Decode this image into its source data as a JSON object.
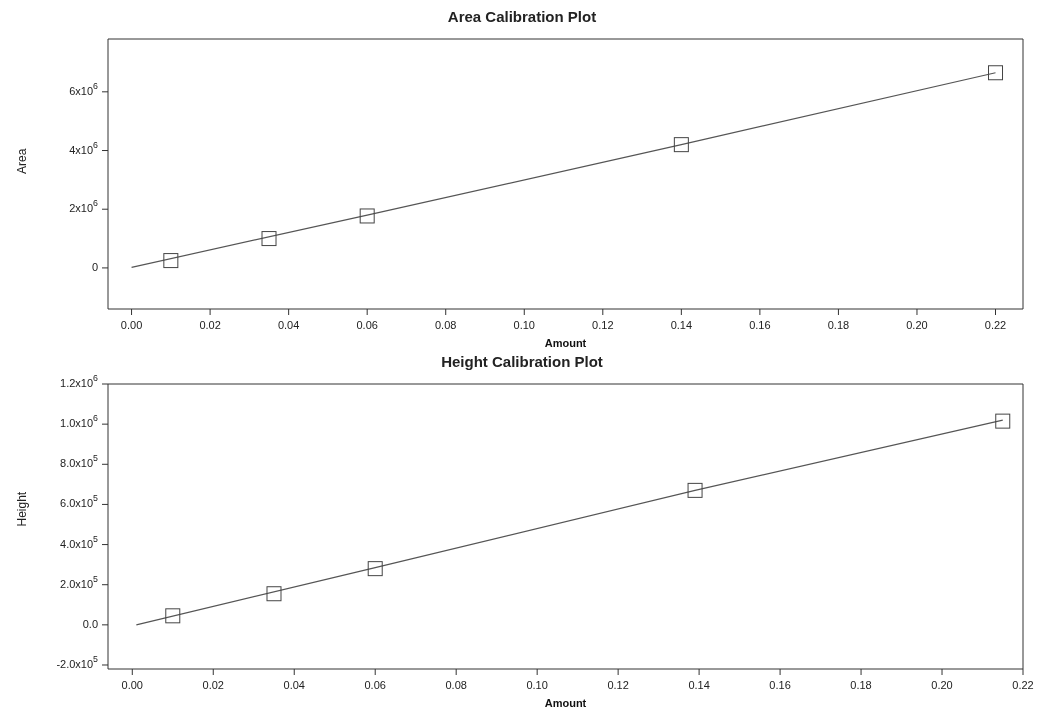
{
  "chart_data": [
    {
      "type": "scatter",
      "title": "Area Calibration Plot",
      "xlabel": "Amount",
      "ylabel": "Area",
      "xlim": [
        -0.006,
        0.227
      ],
      "xticks": [
        {
          "value": 0,
          "label": "0.00"
        },
        0.02,
        0.04,
        0.06,
        0.08,
        {
          "value": 0.1,
          "label": "0.10"
        },
        0.12,
        0.14,
        0.16,
        0.18,
        {
          "value": 0.2,
          "label": "0.20"
        },
        0.22
      ],
      "ylim": [
        -1400000,
        7800000
      ],
      "yticks": [
        {
          "value": 0,
          "label": "0"
        },
        {
          "value": 2000000,
          "label": "2x10$^{6}$"
        },
        {
          "value": 4000000,
          "label": "4x10$^{6}$"
        },
        {
          "value": 6000000,
          "label": "6x10$^{6}$"
        }
      ],
      "grid": false,
      "legend": false,
      "series": [
        {
          "type": "scatter",
          "marker": "square",
          "color": "#444444",
          "x": [
            0.01,
            0.035,
            0.06,
            0.14,
            0.22
          ],
          "values": [
            250000,
            1000000,
            1770000,
            4200000,
            6650000
          ]
        },
        {
          "type": "line",
          "marker": "none",
          "color": "#555555",
          "x": [
            0,
            0.06,
            0.14,
            0.22
          ],
          "values": [
            20000,
            1800000,
            4200000,
            6650000
          ]
        }
      ]
    },
    {
      "type": "scatter",
      "title": "Height Calibration Plot",
      "xlabel": "Amount",
      "ylabel": "Height",
      "xlim": [
        -0.006,
        0.22
      ],
      "xticks": [
        {
          "value": 0,
          "label": "0.00"
        },
        0.02,
        0.04,
        0.06,
        0.08,
        {
          "value": 0.1,
          "label": "0.10"
        },
        0.12,
        0.14,
        0.16,
        0.18,
        {
          "value": 0.2,
          "label": "0.20"
        },
        0.22
      ],
      "ylim": [
        -220000,
        1200000
      ],
      "yticks": [
        {
          "value": -200000,
          "label": "-2.0x10$^{5}$"
        },
        {
          "value": 0,
          "label": "0.0"
        },
        {
          "value": 200000,
          "label": "2.0x10$^{5}$"
        },
        {
          "value": 400000,
          "label": "4.0x10$^{5}$"
        },
        {
          "value": 600000,
          "label": "6.0x10$^{5}$"
        },
        {
          "value": 800000,
          "label": "8.0x10$^{5}$"
        },
        {
          "value": 1000000,
          "label": "1.0x10$^{6}$"
        },
        {
          "value": 1200000,
          "label": "1.2x10$^{6}$"
        }
      ],
      "grid": false,
      "legend": false,
      "series": [
        {
          "type": "scatter",
          "marker": "square",
          "color": "#444444",
          "x": [
            0.01,
            0.035,
            0.06,
            0.139,
            0.215
          ],
          "values": [
            45000,
            155000,
            280000,
            670000,
            1015000
          ]
        },
        {
          "type": "line",
          "marker": "none",
          "color": "#555555",
          "x": [
            0.001,
            0.06,
            0.139,
            0.215
          ],
          "values": [
            0,
            285000,
            670000,
            1020000
          ]
        }
      ]
    }
  ]
}
